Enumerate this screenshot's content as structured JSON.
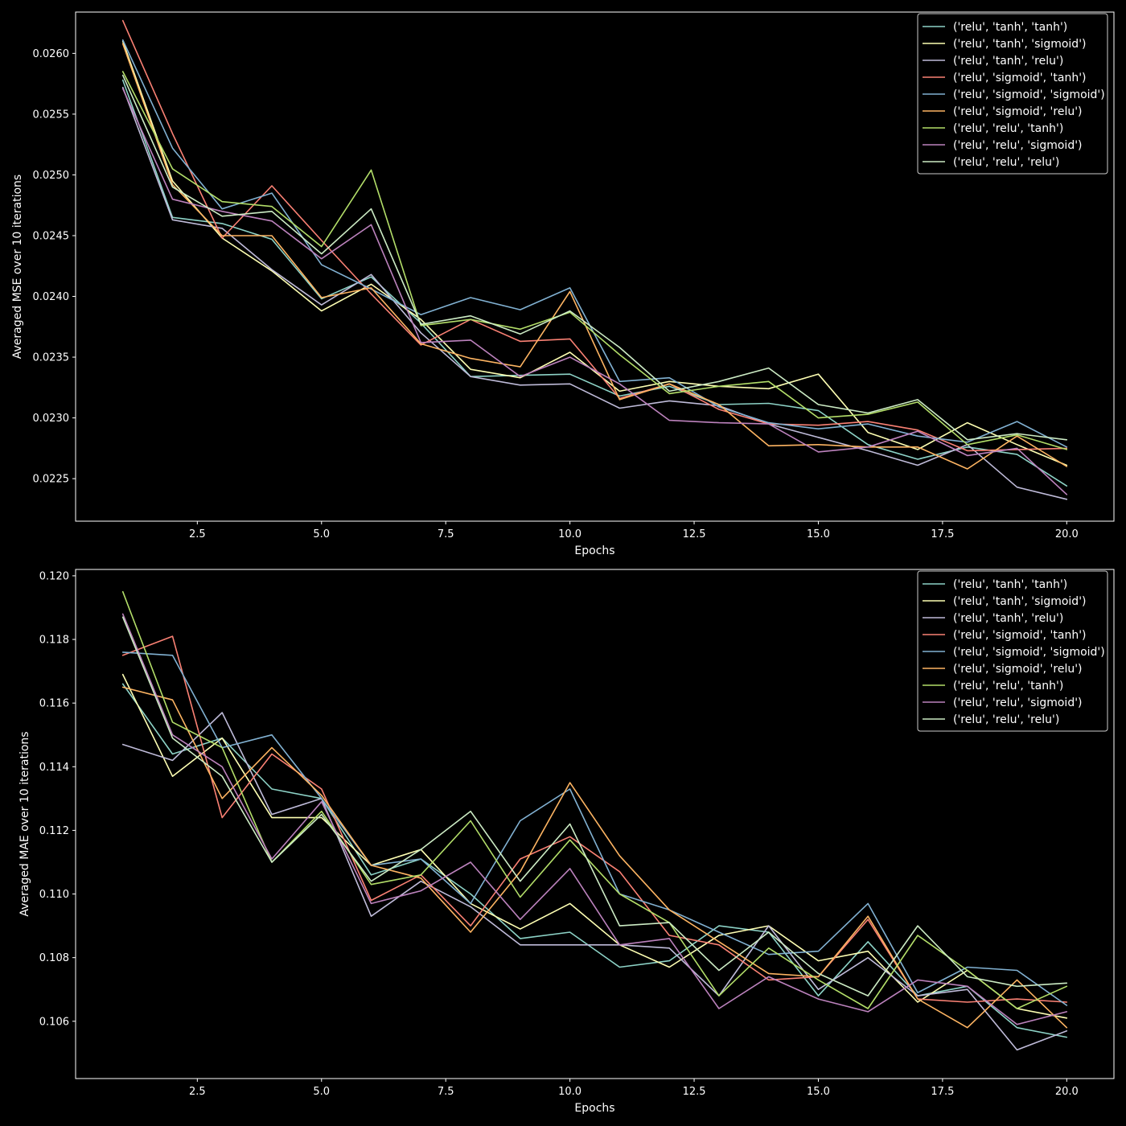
{
  "chart_data": [
    {
      "type": "line",
      "title": "",
      "xlabel": "Epochs",
      "ylabel": "Averaged MSE over 10 iterations",
      "xlim": [
        0.05,
        20.95
      ],
      "ylim": [
        0.02215,
        0.02634
      ],
      "xticks": [
        2.5,
        5.0,
        7.5,
        10.0,
        12.5,
        15.0,
        17.5,
        20.0
      ],
      "xtick_labels": [
        "2.5",
        "5.0",
        "7.5",
        "10.0",
        "12.5",
        "15.0",
        "17.5",
        "20.0"
      ],
      "yticks": [
        0.0225,
        0.023,
        0.0235,
        0.024,
        0.0245,
        0.025,
        0.0255,
        0.026
      ],
      "ytick_labels": [
        "0.0225",
        "0.0230",
        "0.0235",
        "0.0240",
        "0.0245",
        "0.0250",
        "0.0255",
        "0.0260"
      ],
      "grid": false,
      "legend_position": "top-right",
      "x": [
        1,
        2,
        3,
        4,
        5,
        6,
        7,
        8,
        9,
        10,
        11,
        12,
        13,
        14,
        15,
        16,
        17,
        18,
        19,
        20
      ],
      "series": [
        {
          "name": "('relu', 'tanh', 'tanh')",
          "color": "#8dd3c7",
          "values": [
            0.02578,
            0.02465,
            0.0246,
            0.02447,
            0.02398,
            0.02416,
            0.02378,
            0.02334,
            0.02335,
            0.02336,
            0.02318,
            0.02326,
            0.02311,
            0.02312,
            0.02306,
            0.02278,
            0.02266,
            0.02276,
            0.0227,
            0.02244
          ]
        },
        {
          "name": "('relu', 'tanh', 'sigmoid')",
          "color": "#feffb3",
          "values": [
            0.0261,
            0.02495,
            0.02448,
            0.02421,
            0.02388,
            0.0241,
            0.02381,
            0.0234,
            0.02333,
            0.02354,
            0.02322,
            0.0233,
            0.02326,
            0.02324,
            0.02336,
            0.02288,
            0.02274,
            0.02296,
            0.02278,
            0.02261
          ]
        },
        {
          "name": "('relu', 'tanh', 'relu')",
          "color": "#bfbbd9",
          "values": [
            0.02572,
            0.02463,
            0.02456,
            0.02422,
            0.02393,
            0.02418,
            0.0237,
            0.02334,
            0.02327,
            0.02328,
            0.02308,
            0.02314,
            0.0231,
            0.02295,
            0.02284,
            0.02273,
            0.02261,
            0.02278,
            0.02243,
            0.02233
          ]
        },
        {
          "name": "('relu', 'sigmoid', 'tanh')",
          "color": "#fa8174",
          "values": [
            0.02627,
            0.02534,
            0.02448,
            0.02491,
            0.02446,
            0.02402,
            0.0236,
            0.02381,
            0.02363,
            0.02365,
            0.02316,
            0.02328,
            0.02307,
            0.02295,
            0.02294,
            0.02297,
            0.0229,
            0.02273,
            0.02274,
            0.02275
          ]
        },
        {
          "name": "('relu', 'sigmoid', 'sigmoid')",
          "color": "#81b1d2",
          "values": [
            0.02611,
            0.02522,
            0.02472,
            0.02485,
            0.02426,
            0.02406,
            0.02385,
            0.02399,
            0.02389,
            0.02407,
            0.0233,
            0.02333,
            0.02309,
            0.02296,
            0.02291,
            0.02295,
            0.02285,
            0.0228,
            0.02297,
            0.02276
          ]
        },
        {
          "name": "('relu', 'sigmoid', 'relu')",
          "color": "#fdb462",
          "values": [
            0.02608,
            0.02492,
            0.0245,
            0.0245,
            0.02399,
            0.02407,
            0.02361,
            0.02349,
            0.02342,
            0.02404,
            0.02315,
            0.02328,
            0.02311,
            0.02277,
            0.02278,
            0.02276,
            0.02276,
            0.02258,
            0.02285,
            0.0226
          ]
        },
        {
          "name": "('relu', 'relu', 'tanh')",
          "color": "#b3de69",
          "values": [
            0.02585,
            0.02505,
            0.02478,
            0.02474,
            0.02441,
            0.02504,
            0.02376,
            0.02381,
            0.02373,
            0.02387,
            0.02352,
            0.0232,
            0.02326,
            0.0233,
            0.023,
            0.02303,
            0.02313,
            0.02278,
            0.02286,
            0.02274
          ]
        },
        {
          "name": "('relu', 'relu', 'sigmoid')",
          "color": "#bc82bd",
          "values": [
            0.02571,
            0.0248,
            0.0247,
            0.02462,
            0.02431,
            0.02459,
            0.02362,
            0.02364,
            0.02334,
            0.0235,
            0.02328,
            0.02298,
            0.02296,
            0.02295,
            0.02272,
            0.02276,
            0.02289,
            0.02269,
            0.02275,
            0.02237
          ]
        },
        {
          "name": "('relu', 'relu', 'relu')",
          "color": "#ccebc4",
          "values": [
            0.02582,
            0.0249,
            0.02466,
            0.0247,
            0.02435,
            0.02472,
            0.02377,
            0.02384,
            0.02369,
            0.02388,
            0.02358,
            0.02322,
            0.0233,
            0.02341,
            0.02311,
            0.02304,
            0.02315,
            0.02282,
            0.02287,
            0.02282
          ]
        }
      ]
    },
    {
      "type": "line",
      "title": "",
      "xlabel": "Epochs",
      "ylabel": "Averaged MAE over 10 iterations",
      "xlim": [
        0.05,
        20.95
      ],
      "ylim": [
        0.1042,
        0.1202
      ],
      "xticks": [
        2.5,
        5.0,
        7.5,
        10.0,
        12.5,
        15.0,
        17.5,
        20.0
      ],
      "xtick_labels": [
        "2.5",
        "5.0",
        "7.5",
        "10.0",
        "12.5",
        "15.0",
        "17.5",
        "20.0"
      ],
      "yticks": [
        0.106,
        0.108,
        0.11,
        0.112,
        0.114,
        0.116,
        0.118,
        0.12
      ],
      "ytick_labels": [
        "0.106",
        "0.108",
        "0.110",
        "0.112",
        "0.114",
        "0.116",
        "0.118",
        "0.120"
      ],
      "grid": false,
      "legend_position": "top-right",
      "x": [
        1,
        2,
        3,
        4,
        5,
        6,
        7,
        8,
        9,
        10,
        11,
        12,
        13,
        14,
        15,
        16,
        17,
        18,
        19,
        20
      ],
      "series": [
        {
          "name": "('relu', 'tanh', 'tanh')",
          "color": "#8dd3c7",
          "values": [
            0.1166,
            0.1144,
            0.1149,
            0.1133,
            0.113,
            0.1106,
            0.1111,
            0.11,
            0.1086,
            0.1088,
            0.1077,
            0.1079,
            0.109,
            0.1088,
            0.1068,
            0.1085,
            0.1068,
            0.1071,
            0.1058,
            0.1055
          ]
        },
        {
          "name": "('relu', 'tanh', 'sigmoid')",
          "color": "#feffb3",
          "values": [
            0.1169,
            0.1137,
            0.1149,
            0.1124,
            0.1124,
            0.1109,
            0.1114,
            0.1097,
            0.1089,
            0.1097,
            0.1084,
            0.1077,
            0.1087,
            0.109,
            0.1079,
            0.1082,
            0.1066,
            0.1076,
            0.1064,
            0.1061
          ]
        },
        {
          "name": "('relu', 'tanh', 'relu')",
          "color": "#bfbbd9",
          "values": [
            0.1147,
            0.1142,
            0.1157,
            0.1125,
            0.113,
            0.1093,
            0.1104,
            0.1096,
            0.1084,
            0.1084,
            0.1084,
            0.1083,
            0.1068,
            0.109,
            0.107,
            0.108,
            0.1068,
            0.107,
            0.1051,
            0.1057
          ]
        },
        {
          "name": "('relu', 'sigmoid', 'tanh')",
          "color": "#fa8174",
          "values": [
            0.1175,
            0.1181,
            0.1124,
            0.1144,
            0.1133,
            0.1098,
            0.1106,
            0.109,
            0.1111,
            0.1118,
            0.1107,
            0.1087,
            0.1084,
            0.1073,
            0.1074,
            0.1092,
            0.1067,
            0.1066,
            0.1067,
            0.1066
          ]
        },
        {
          "name": "('relu', 'sigmoid', 'sigmoid')",
          "color": "#81b1d2",
          "values": [
            0.1176,
            0.1175,
            0.1146,
            0.115,
            0.113,
            0.1109,
            0.1111,
            0.1097,
            0.1123,
            0.1133,
            0.11,
            0.1095,
            0.1088,
            0.1081,
            0.1082,
            0.1097,
            0.1069,
            0.1077,
            0.1076,
            0.1065
          ]
        },
        {
          "name": "('relu', 'sigmoid', 'relu')",
          "color": "#fdb462",
          "values": [
            0.1165,
            0.1161,
            0.113,
            0.1146,
            0.1131,
            0.1109,
            0.1105,
            0.1088,
            0.1107,
            0.1135,
            0.1112,
            0.1095,
            0.1085,
            0.1075,
            0.1074,
            0.1093,
            0.1067,
            0.1058,
            0.1073,
            0.1058
          ]
        },
        {
          "name": "('relu', 'relu', 'tanh')",
          "color": "#b3de69",
          "values": [
            0.1195,
            0.1154,
            0.1146,
            0.111,
            0.1126,
            0.1103,
            0.1106,
            0.1123,
            0.1099,
            0.1117,
            0.11,
            0.1091,
            0.1068,
            0.1083,
            0.1073,
            0.1064,
            0.1087,
            0.1076,
            0.1064,
            0.1071
          ]
        },
        {
          "name": "('relu', 'relu', 'sigmoid')",
          "color": "#bc82bd",
          "values": [
            0.1188,
            0.115,
            0.114,
            0.1111,
            0.1129,
            0.1097,
            0.1101,
            0.111,
            0.1092,
            0.1108,
            0.1084,
            0.1086,
            0.1064,
            0.1074,
            0.1067,
            0.1063,
            0.1073,
            0.1071,
            0.1059,
            0.1063
          ]
        },
        {
          "name": "('relu', 'relu', 'relu')",
          "color": "#ccebc4",
          "values": [
            0.1187,
            0.1149,
            0.1137,
            0.111,
            0.1125,
            0.1104,
            0.1114,
            0.1126,
            0.1104,
            0.1122,
            0.109,
            0.1091,
            0.1076,
            0.1088,
            0.1075,
            0.1068,
            0.109,
            0.1074,
            0.1071,
            0.1072
          ]
        }
      ]
    }
  ]
}
